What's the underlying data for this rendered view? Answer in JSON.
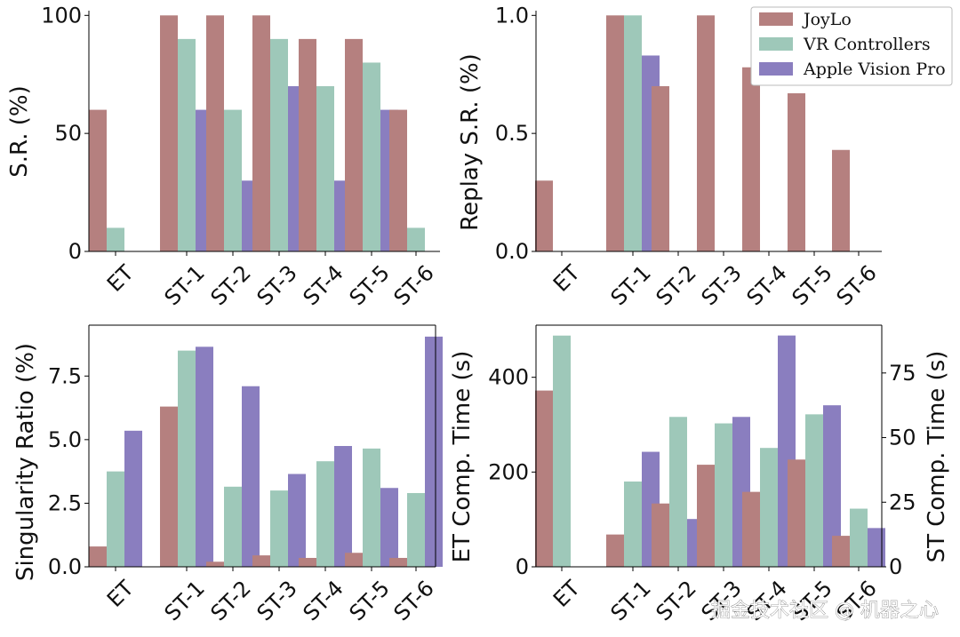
{
  "colors": {
    "JoyLo": "#b5807f",
    "VR Controllers": "#9ec8b9",
    "Apple Vision Pro": "#8a7ebf"
  },
  "legend": [
    "JoyLo",
    "VR Controllers",
    "Apple Vision Pro"
  ],
  "watermark": "掘金技术社区 @ 机器之心",
  "chart_data": [
    {
      "type": "bar",
      "categories": [
        "ET",
        "ST-1",
        "ST-2",
        "ST-3",
        "ST-4",
        "ST-5",
        "ST-6"
      ],
      "ylabel": "S.R. (%)",
      "ylim": [
        0,
        102
      ],
      "yticks": [
        0,
        50,
        100
      ],
      "ytick_labels": [
        "0",
        "50",
        "100"
      ],
      "series": [
        {
          "name": "JoyLo",
          "values": [
            60,
            100,
            100,
            100,
            90,
            90,
            60
          ]
        },
        {
          "name": "VR Controllers",
          "values": [
            10,
            90,
            60,
            90,
            70,
            80,
            10
          ]
        },
        {
          "name": "Apple Vision Pro",
          "values": [
            0,
            60,
            30,
            70,
            30,
            60,
            0
          ]
        }
      ]
    },
    {
      "type": "bar",
      "categories": [
        "ET",
        "ST-1",
        "ST-2",
        "ST-3",
        "ST-4",
        "ST-5",
        "ST-6"
      ],
      "ylabel": "Replay S.R. (%)",
      "ylim": [
        0,
        1.02
      ],
      "yticks": [
        0,
        0.5,
        1.0
      ],
      "ytick_labels": [
        "0.0",
        "0.5",
        "1.0"
      ],
      "legend_position": "top-right",
      "series": [
        {
          "name": "JoyLo",
          "values": [
            0.3,
            1.0,
            0.7,
            1.0,
            0.78,
            0.67,
            0.43
          ]
        },
        {
          "name": "VR Controllers",
          "values": [
            0,
            1.0,
            0,
            0,
            0,
            0,
            0
          ]
        },
        {
          "name": "Apple Vision Pro",
          "values": [
            0,
            0.83,
            0,
            0,
            0,
            0,
            0
          ]
        }
      ]
    },
    {
      "type": "bar",
      "categories": [
        "ET",
        "ST-1",
        "ST-2",
        "ST-3",
        "ST-4",
        "ST-5",
        "ST-6"
      ],
      "ylabel": "Singularity Ratio (%)",
      "ylim": [
        0,
        9.5
      ],
      "yticks": [
        0,
        2.5,
        5.0,
        7.5
      ],
      "ytick_labels": [
        "0.0",
        "2.5",
        "5.0",
        "7.5"
      ],
      "series": [
        {
          "name": "JoyLo",
          "values": [
            0.8,
            6.3,
            0.2,
            0.45,
            0.35,
            0.55,
            0.35
          ]
        },
        {
          "name": "VR Controllers",
          "values": [
            3.75,
            8.5,
            3.15,
            3.0,
            4.15,
            4.65,
            2.9
          ]
        },
        {
          "name": "Apple Vision Pro",
          "values": [
            5.35,
            8.65,
            7.1,
            3.65,
            4.75,
            3.1,
            9.05
          ]
        }
      ]
    },
    {
      "type": "bar",
      "categories": [
        "ET",
        "ST-1",
        "ST-2",
        "ST-3",
        "ST-4",
        "ST-5",
        "ST-6"
      ],
      "ylabel": "ET Comp. Time (s)",
      "ylabel_right": "ST Comp. Time (s)",
      "ylim": [
        0,
        510
      ],
      "yticks": [
        0,
        200,
        400
      ],
      "ytick_labels": [
        "0",
        "200",
        "400"
      ],
      "ylim_right": [
        0,
        93.5
      ],
      "yticks_right": [
        0,
        25,
        50,
        75
      ],
      "ytick_labels_right": [
        "0",
        "25",
        "50",
        "75"
      ],
      "note": "ET group plotted on left axis; ST groups plotted on right axis",
      "series": [
        {
          "name": "JoyLo",
          "values": [
            372,
            12.5,
            24.5,
            39.5,
            29,
            41.5,
            12
          ]
        },
        {
          "name": "VR Controllers",
          "values": [
            488,
            33,
            58,
            55.5,
            46,
            59,
            22.5
          ]
        },
        {
          "name": "Apple Vision Pro",
          "values": [
            0,
            44.5,
            18.5,
            58,
            89.5,
            62.5,
            15
          ]
        }
      ]
    }
  ]
}
